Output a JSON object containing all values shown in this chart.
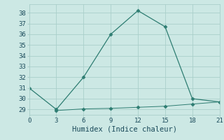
{
  "line1_x": [
    0,
    3,
    6,
    9,
    12,
    15,
    18,
    21
  ],
  "line1_y": [
    31,
    29,
    32,
    36,
    38.2,
    36.7,
    30,
    29.7
  ],
  "line2_x": [
    3,
    6,
    9,
    12,
    15,
    18,
    21
  ],
  "line2_y": [
    28.9,
    29.05,
    29.1,
    29.2,
    29.3,
    29.5,
    29.7
  ],
  "line_color": "#2e7d72",
  "marker": "D",
  "marker_size": 2.5,
  "background_color": "#cce8e4",
  "grid_color": "#aacfca",
  "xlabel": "Humidex (Indice chaleur)",
  "xlim": [
    0,
    21
  ],
  "ylim": [
    28.5,
    38.8
  ],
  "xticks": [
    0,
    3,
    6,
    9,
    12,
    15,
    18,
    21
  ],
  "yticks": [
    29,
    30,
    31,
    32,
    33,
    34,
    35,
    36,
    37,
    38
  ],
  "font_color": "#1a4a5a",
  "font_family": "monospace",
  "font_size_tick": 6.5,
  "font_size_xlabel": 7.5
}
